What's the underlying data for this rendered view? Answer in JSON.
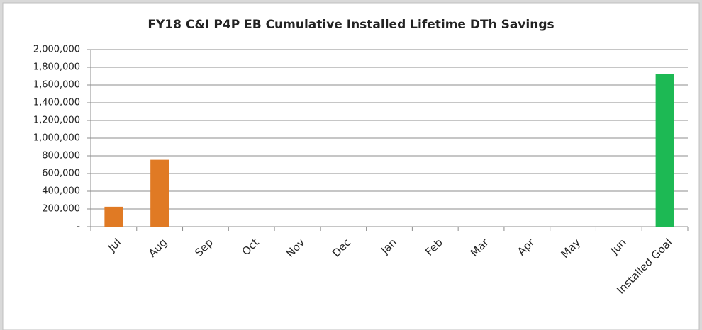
{
  "chart_data": {
    "type": "bar",
    "title": "FY18 C&I P4P EB Cumulative Installed Lifetime DTh Savings",
    "categories": [
      "Jul",
      "Aug",
      "Sep",
      "Oct",
      "Nov",
      "Dec",
      "Jan",
      "Feb",
      "Mar",
      "Apr",
      "May",
      "Jun",
      "Installed Goal"
    ],
    "values": [
      225000,
      755000,
      null,
      null,
      null,
      null,
      null,
      null,
      null,
      null,
      null,
      null,
      1725000
    ],
    "colors": [
      "#e07a24",
      "#e07a24",
      "#e07a24",
      "#e07a24",
      "#e07a24",
      "#e07a24",
      "#e07a24",
      "#e07a24",
      "#e07a24",
      "#e07a24",
      "#e07a24",
      "#e07a24",
      "#1db954"
    ],
    "ylim": [
      0,
      2000000
    ],
    "yticks": [
      {
        "value": 0,
        "label": "-"
      },
      {
        "value": 200000,
        "label": "200,000"
      },
      {
        "value": 400000,
        "label": "400,000"
      },
      {
        "value": 600000,
        "label": "600,000"
      },
      {
        "value": 800000,
        "label": "800,000"
      },
      {
        "value": 1000000,
        "label": "1,000,000"
      },
      {
        "value": 1200000,
        "label": "1,200,000"
      },
      {
        "value": 1400000,
        "label": "1,400,000"
      },
      {
        "value": 1600000,
        "label": "1,600,000"
      },
      {
        "value": 1800000,
        "label": "1,800,000"
      },
      {
        "value": 2000000,
        "label": "2,000,000"
      }
    ],
    "grid": true
  }
}
